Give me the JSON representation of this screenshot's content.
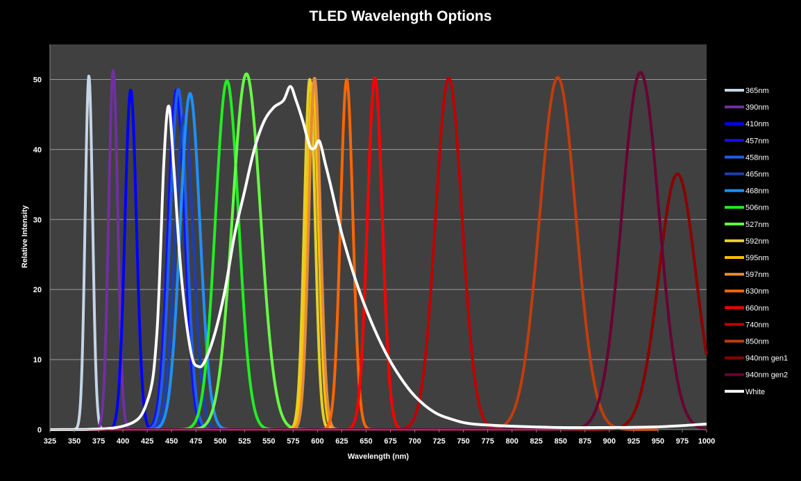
{
  "chart_data": {
    "type": "line",
    "title": "TLED  Wavelength Options",
    "xlabel": "Wavelength (nm)",
    "ylabel": "Relative Intensity",
    "xlim": [
      325,
      1000
    ],
    "ylim": [
      0,
      55
    ],
    "xticks": [
      "325",
      "350",
      "375",
      "400",
      "425",
      "450",
      "475",
      "500",
      "525",
      "550",
      "575",
      "600",
      "625",
      "650",
      "675",
      "700",
      "725",
      "750",
      "775",
      "800",
      "825",
      "850",
      "875",
      "900",
      "925",
      "950",
      "975",
      "1000"
    ],
    "yticks": [
      "0",
      "10",
      "20",
      "30",
      "40",
      "50"
    ],
    "grid": true,
    "legend_position": "right",
    "series": [
      {
        "name": "365nm",
        "color": "#c5d5e8",
        "peak": 365,
        "height": 50.5,
        "fwhm": 9
      },
      {
        "name": "390nm",
        "color": "#7030a0",
        "peak": 390,
        "height": 51.3,
        "fwhm": 11
      },
      {
        "name": "410nm",
        "color": "#0000ff",
        "peak": 408,
        "height": 48.5,
        "fwhm": 14
      },
      {
        "name": "457nm",
        "color": "#1010ff",
        "peak": 455,
        "height": 48.5,
        "fwhm": 20
      },
      {
        "name": "458nm",
        "color": "#1f5fe8",
        "peak": 457,
        "height": 48.6,
        "fwhm": 20
      },
      {
        "name": "465nm",
        "color": "#1b3fb5",
        "peak": 463,
        "height": 45,
        "fwhm": 22
      },
      {
        "name": "468nm",
        "color": "#1e90ff",
        "peak": 469,
        "height": 48,
        "fwhm": 24
      },
      {
        "name": "506nm",
        "color": "#22ee22",
        "peak": 507,
        "height": 49.8,
        "fwhm": 28
      },
      {
        "name": "527nm",
        "color": "#66ff44",
        "peak": 527,
        "height": 50.8,
        "fwhm": 34
      },
      {
        "name": "592nm",
        "color": "#e5d02a",
        "peak": 592,
        "height": 50,
        "fwhm": 13
      },
      {
        "name": "595nm",
        "color": "#ffc000",
        "peak": 595,
        "height": 49.5,
        "fwhm": 14
      },
      {
        "name": "597nm",
        "color": "#e08c40",
        "peak": 597,
        "height": 50.2,
        "fwhm": 14
      },
      {
        "name": "630nm",
        "color": "#ff6600",
        "peak": 630,
        "height": 50,
        "fwhm": 15
      },
      {
        "name": "660nm",
        "color": "#ff0000",
        "peak": 659,
        "height": 50.2,
        "fwhm": 18
      },
      {
        "name": "740nm",
        "color": "#c00000",
        "peak": 735,
        "height": 50.2,
        "fwhm": 32
      },
      {
        "name": "850nm",
        "color": "#c43c0a",
        "peak": 847,
        "height": 50.3,
        "fwhm": 44
      },
      {
        "name": "940nm gen1",
        "color": "#8b0000",
        "peak": 970,
        "height": 36.5,
        "fwhm": 45
      },
      {
        "name": "940nm gen2",
        "color": "#6a0033",
        "peak": 932,
        "height": 51,
        "fwhm": 45
      },
      {
        "name": "White",
        "color": "#ffffff",
        "points": [
          [
            325,
            0
          ],
          [
            400,
            0.5
          ],
          [
            425,
            4
          ],
          [
            435,
            14
          ],
          [
            442,
            38
          ],
          [
            447,
            46.2
          ],
          [
            452,
            38
          ],
          [
            460,
            22
          ],
          [
            470,
            11
          ],
          [
            478,
            9
          ],
          [
            485,
            10
          ],
          [
            495,
            14
          ],
          [
            505,
            20
          ],
          [
            515,
            28
          ],
          [
            525,
            34
          ],
          [
            535,
            40
          ],
          [
            545,
            44
          ],
          [
            555,
            46
          ],
          [
            565,
            47
          ],
          [
            572,
            49
          ],
          [
            578,
            47
          ],
          [
            585,
            44
          ],
          [
            592,
            40.5
          ],
          [
            597,
            40.2
          ],
          [
            602,
            41.2
          ],
          [
            608,
            38
          ],
          [
            615,
            34
          ],
          [
            625,
            28
          ],
          [
            640,
            21
          ],
          [
            655,
            15.5
          ],
          [
            670,
            11
          ],
          [
            685,
            7.5
          ],
          [
            700,
            4.8
          ],
          [
            720,
            2.5
          ],
          [
            740,
            1.4
          ],
          [
            760,
            0.8
          ],
          [
            800,
            0.5
          ],
          [
            850,
            0.3
          ],
          [
            900,
            0.3
          ],
          [
            950,
            0.4
          ],
          [
            1000,
            0.8
          ]
        ]
      }
    ]
  }
}
